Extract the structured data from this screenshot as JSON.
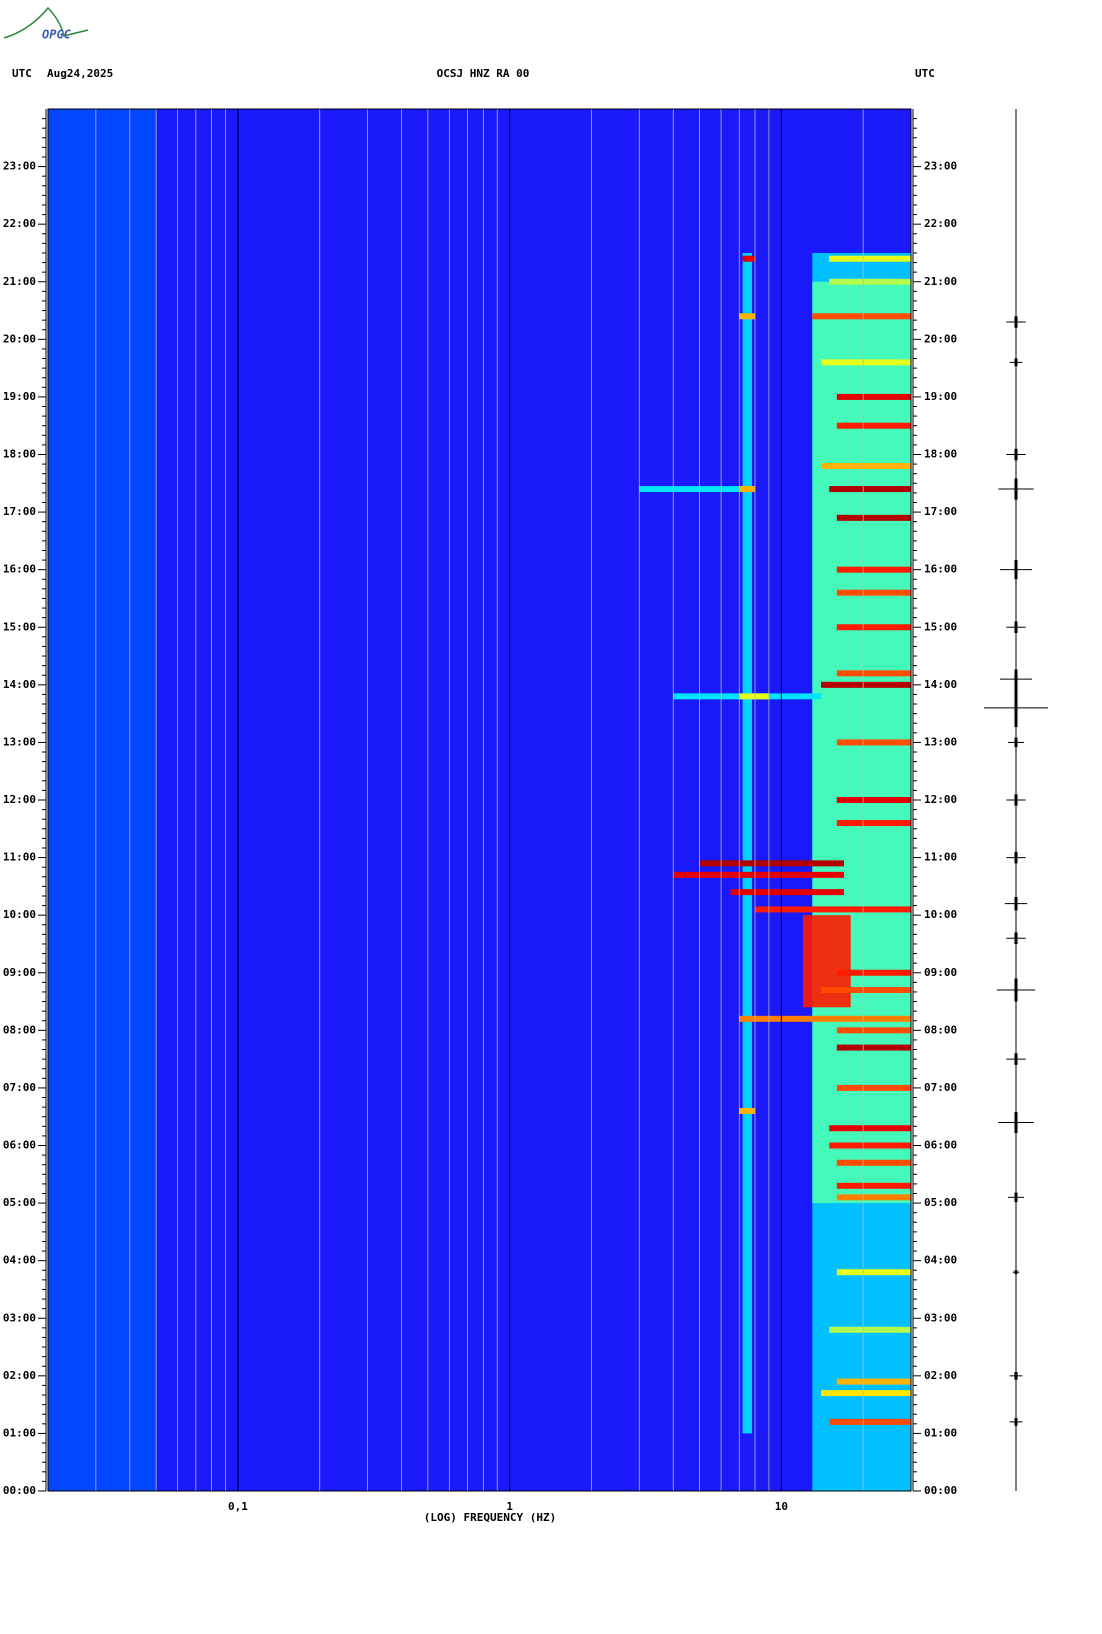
{
  "logo": "OPGC",
  "chart_data": {
    "type": "spectrogram",
    "title": "OCSJ HNZ RA 00",
    "date": "Aug24,2025",
    "time_zone_left": "UTC",
    "time_zone_right": "UTC",
    "x_label": "(LOG) FREQUENCY (HZ)",
    "x_log": true,
    "xlim": [
      0.02,
      30
    ],
    "xticks": [
      {
        "value": 0.1,
        "label": "0,1"
      },
      1,
      10
    ],
    "xminor": [
      0.03,
      0.04,
      0.05,
      0.06,
      0.07,
      0.08,
      0.09,
      0.2,
      0.3,
      0.4,
      0.5,
      0.6,
      0.7,
      0.8,
      0.9,
      2,
      3,
      4,
      5,
      6,
      7,
      8,
      9,
      20
    ],
    "ylim": [
      0,
      24
    ],
    "yticks": [
      {
        "value": 0,
        "label": "00:00"
      },
      {
        "value": 1,
        "label": "01:00"
      },
      {
        "value": 2,
        "label": "02:00"
      },
      {
        "value": 3,
        "label": "03:00"
      },
      {
        "value": 4,
        "label": "04:00"
      },
      {
        "value": 5,
        "label": "05:00"
      },
      {
        "value": 6,
        "label": "06:00"
      },
      {
        "value": 7,
        "label": "07:00"
      },
      {
        "value": 8,
        "label": "08:00"
      },
      {
        "value": 9,
        "label": "09:00"
      },
      {
        "value": 10,
        "label": "10:00"
      },
      {
        "value": 11,
        "label": "11:00"
      },
      {
        "value": 12,
        "label": "12:00"
      },
      {
        "value": 13,
        "label": "13:00"
      },
      {
        "value": 14,
        "label": "14:00"
      },
      {
        "value": 15,
        "label": "15:00"
      },
      {
        "value": 16,
        "label": "16:00"
      },
      {
        "value": 17,
        "label": "17:00"
      },
      {
        "value": 18,
        "label": "18:00"
      },
      {
        "value": 19,
        "label": "19:00"
      },
      {
        "value": 20,
        "label": "20:00"
      },
      {
        "value": 21,
        "label": "21:00"
      },
      {
        "value": 22,
        "label": "22:00"
      },
      {
        "value": 23,
        "label": "23:00"
      }
    ],
    "bands": [
      {
        "t0": 0,
        "t1": 24,
        "f0": 0.02,
        "f1": 30,
        "level": 0.12
      },
      {
        "t0": 0,
        "t1": 24,
        "f0": 0.02,
        "f1": 0.05,
        "level": 0.2
      },
      {
        "t0": 0,
        "t1": 21.5,
        "f0": 13,
        "f1": 30,
        "level": 0.33
      },
      {
        "t0": 5,
        "t1": 21,
        "f0": 13,
        "f1": 30,
        "level": 0.45
      },
      {
        "t0": 1,
        "t1": 21.5,
        "f0": 7.2,
        "f1": 7.8,
        "level": 0.35
      },
      {
        "t0": 8.4,
        "t1": 10,
        "f0": 12,
        "f1": 18,
        "level": 0.85
      }
    ],
    "events": [
      {
        "t": 21.4,
        "f0": 7.2,
        "f1": 8,
        "level": 0.9
      },
      {
        "t": 21.4,
        "f0": 15,
        "f1": 30,
        "level": 0.6
      },
      {
        "t": 21.0,
        "f0": 15,
        "f1": 30,
        "level": 0.55
      },
      {
        "t": 20.4,
        "f0": 7,
        "f1": 8,
        "level": 0.7
      },
      {
        "t": 20.4,
        "f0": 13,
        "f1": 30,
        "level": 0.8
      },
      {
        "t": 19.6,
        "f0": 14,
        "f1": 30,
        "level": 0.6
      },
      {
        "t": 19.0,
        "f0": 16,
        "f1": 30,
        "level": 0.9
      },
      {
        "t": 18.5,
        "f0": 16,
        "f1": 30,
        "level": 0.85
      },
      {
        "t": 17.8,
        "f0": 14,
        "f1": 30,
        "level": 0.7
      },
      {
        "t": 17.4,
        "f0": 3,
        "f1": 7,
        "level": 0.35
      },
      {
        "t": 17.4,
        "f0": 7,
        "f1": 8,
        "level": 0.7
      },
      {
        "t": 17.4,
        "f0": 15,
        "f1": 30,
        "level": 0.95
      },
      {
        "t": 16.9,
        "f0": 16,
        "f1": 30,
        "level": 0.95
      },
      {
        "t": 16.0,
        "f0": 16,
        "f1": 30,
        "level": 0.85
      },
      {
        "t": 15.6,
        "f0": 16,
        "f1": 30,
        "level": 0.8
      },
      {
        "t": 15.0,
        "f0": 16,
        "f1": 30,
        "level": 0.85
      },
      {
        "t": 14.2,
        "f0": 16,
        "f1": 30,
        "level": 0.8
      },
      {
        "t": 14.0,
        "f0": 14,
        "f1": 30,
        "level": 0.95
      },
      {
        "t": 13.8,
        "f0": 4,
        "f1": 14,
        "level": 0.35
      },
      {
        "t": 13.8,
        "f0": 7,
        "f1": 9,
        "level": 0.6
      },
      {
        "t": 13.0,
        "f0": 16,
        "f1": 30,
        "level": 0.8
      },
      {
        "t": 12.0,
        "f0": 16,
        "f1": 30,
        "level": 0.9
      },
      {
        "t": 11.6,
        "f0": 16,
        "f1": 30,
        "level": 0.85
      },
      {
        "t": 10.9,
        "f0": 5,
        "f1": 17,
        "level": 0.95
      },
      {
        "t": 10.7,
        "f0": 4,
        "f1": 17,
        "level": 0.9
      },
      {
        "t": 10.4,
        "f0": 6.5,
        "f1": 17,
        "level": 0.9
      },
      {
        "t": 10.1,
        "f0": 8,
        "f1": 30,
        "level": 0.85
      },
      {
        "t": 9.0,
        "f0": 16,
        "f1": 30,
        "level": 0.85
      },
      {
        "t": 8.7,
        "f0": 14,
        "f1": 30,
        "level": 0.8
      },
      {
        "t": 8.2,
        "f0": 7,
        "f1": 30,
        "level": 0.75
      },
      {
        "t": 8.0,
        "f0": 16,
        "f1": 30,
        "level": 0.8
      },
      {
        "t": 7.7,
        "f0": 16,
        "f1": 30,
        "level": 0.95
      },
      {
        "t": 7.0,
        "f0": 16,
        "f1": 30,
        "level": 0.8
      },
      {
        "t": 6.6,
        "f0": 7,
        "f1": 8,
        "level": 0.7
      },
      {
        "t": 6.3,
        "f0": 15,
        "f1": 30,
        "level": 0.9
      },
      {
        "t": 6.0,
        "f0": 15,
        "f1": 30,
        "level": 0.85
      },
      {
        "t": 5.7,
        "f0": 16,
        "f1": 30,
        "level": 0.8
      },
      {
        "t": 5.3,
        "f0": 16,
        "f1": 30,
        "level": 0.85
      },
      {
        "t": 5.1,
        "f0": 16,
        "f1": 30,
        "level": 0.75
      },
      {
        "t": 3.8,
        "f0": 16,
        "f1": 30,
        "level": 0.6
      },
      {
        "t": 2.8,
        "f0": 15,
        "f1": 30,
        "level": 0.55
      },
      {
        "t": 1.9,
        "f0": 16,
        "f1": 30,
        "level": 0.7
      },
      {
        "t": 1.7,
        "f0": 14,
        "f1": 30,
        "level": 0.65
      },
      {
        "t": 1.2,
        "f0": 15,
        "f1": 30,
        "level": 0.8
      }
    ],
    "trace": [
      {
        "t": 13.6,
        "amp": 1
      },
      {
        "t": 8.7,
        "amp": 0.6
      },
      {
        "t": 6.4,
        "amp": 0.55
      },
      {
        "t": 17.4,
        "amp": 0.55
      },
      {
        "t": 14.1,
        "amp": 0.5
      },
      {
        "t": 11.0,
        "amp": 0.3
      },
      {
        "t": 10.2,
        "amp": 0.35
      },
      {
        "t": 16.0,
        "amp": 0.5
      },
      {
        "t": 20.3,
        "amp": 0.3
      },
      {
        "t": 18.0,
        "amp": 0.3
      },
      {
        "t": 19.6,
        "amp": 0.2
      },
      {
        "t": 12.0,
        "amp": 0.3
      },
      {
        "t": 1.2,
        "amp": 0.2
      },
      {
        "t": 2.0,
        "amp": 0.2
      },
      {
        "t": 5.1,
        "amp": 0.25
      },
      {
        "t": 3.8,
        "amp": 0.1
      },
      {
        "t": 7.5,
        "amp": 0.3
      },
      {
        "t": 15.0,
        "amp": 0.3
      },
      {
        "t": 13.0,
        "amp": 0.25
      },
      {
        "t": 9.6,
        "amp": 0.3
      }
    ]
  }
}
